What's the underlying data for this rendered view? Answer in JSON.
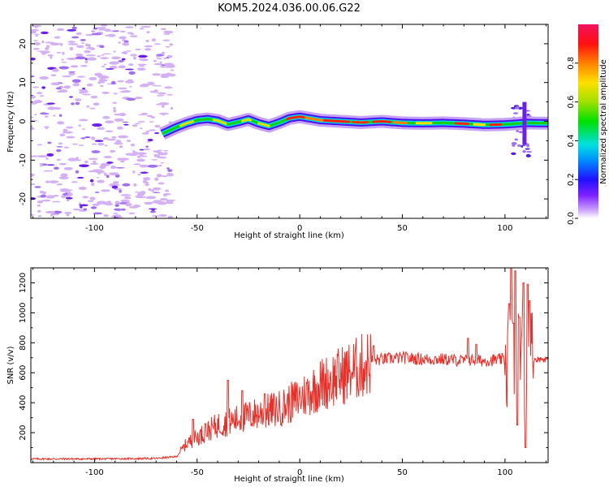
{
  "title": "KOM5.2024.036.00.06.G22",
  "chart_data": [
    {
      "type": "heatmap",
      "xlabel": "Height of straight line (km)",
      "ylabel": "Frequency (Hz)",
      "xlim": [
        -131,
        121
      ],
      "ylim": [
        -25,
        25
      ],
      "xticks": [
        -100,
        -50,
        0,
        50,
        100
      ],
      "yticks": [
        -20,
        -10,
        0,
        10,
        20
      ],
      "colorbar": {
        "label": "Normalized spectral amplitude",
        "range": [
          0,
          1
        ],
        "ticks": [
          "0.0",
          "0.2",
          "0.4",
          "0.6",
          "0.8"
        ],
        "colormap": "rainbow (white/violet low, green mid, red/pink high)"
      },
      "ridge": {
        "x": [
          -67,
          -60,
          -55,
          -50,
          -45,
          -40,
          -35,
          -30,
          -25,
          -20,
          -15,
          -10,
          -5,
          0,
          10,
          20,
          30,
          40,
          50,
          60,
          70,
          80,
          90,
          100,
          105,
          110,
          121
        ],
        "y": [
          -3.2,
          -1.5,
          -0.5,
          0.3,
          0.6,
          0.2,
          -0.8,
          -0.2,
          0.5,
          -0.5,
          -1.2,
          -0.3,
          0.8,
          1.2,
          0.3,
          0.0,
          -0.3,
          0.0,
          -0.4,
          -0.5,
          -0.4,
          -0.6,
          -0.9,
          -0.8,
          -0.6,
          -0.4,
          -0.5
        ]
      },
      "noise_region_x": [
        -131,
        -62
      ]
    },
    {
      "type": "line",
      "xlabel": "Height of straight line (km)",
      "ylabel": "SNR (v/v)",
      "xlim": [
        -131,
        121
      ],
      "ylim": [
        0,
        1300
      ],
      "xticks": [
        -100,
        -50,
        0,
        50,
        100
      ],
      "yticks": [
        200,
        400,
        600,
        800,
        1000,
        1200
      ],
      "color": "#e8302a",
      "trend": {
        "x": [
          -131,
          -100,
          -70,
          -60,
          -55,
          -50,
          -40,
          -30,
          -20,
          -10,
          0,
          10,
          20,
          30,
          35,
          40,
          50,
          60,
          70,
          80,
          85,
          90,
          95,
          100,
          103,
          107,
          110,
          113,
          121
        ],
        "y": [
          25,
          25,
          28,
          40,
          130,
          170,
          250,
          290,
          330,
          360,
          430,
          520,
          580,
          640,
          680,
          690,
          700,
          690,
          690,
          680,
          685,
          680,
          685,
          690,
          700,
          690,
          690,
          690,
          690
        ]
      },
      "spikes": {
        "x": [
          -52,
          -46,
          -35,
          -28,
          -17,
          36,
          82,
          86,
          102,
          103,
          104,
          105,
          106,
          107,
          109,
          110,
          111,
          112
        ],
        "y": [
          290,
          260,
          550,
          480,
          460,
          780,
          830,
          790,
          1060,
          1300,
          930,
          1280,
          250,
          970,
          1200,
          100,
          1190,
          1080
        ]
      }
    }
  ]
}
